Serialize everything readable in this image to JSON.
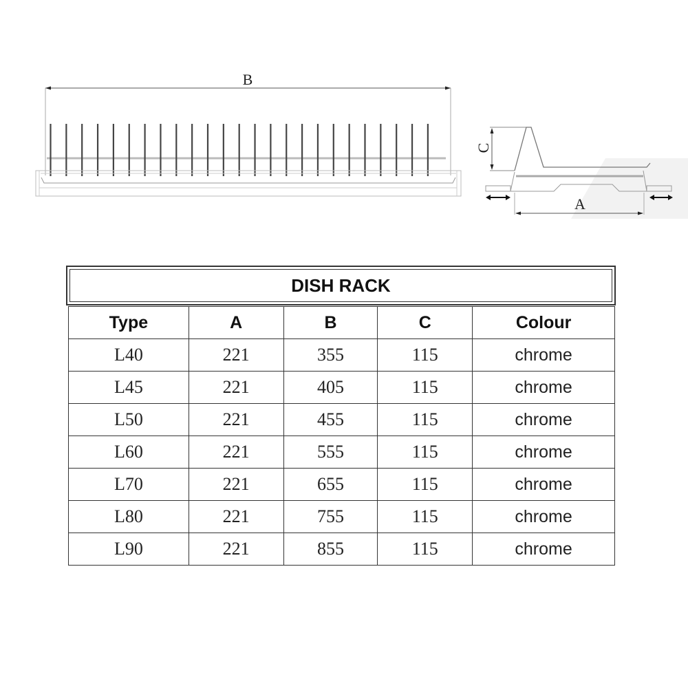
{
  "drawings": {
    "front_view": {
      "dimension_label": "B"
    },
    "side_view": {
      "height_label": "C",
      "depth_label": "A"
    }
  },
  "table": {
    "title": "DISH RACK",
    "headers": [
      "Type",
      "A",
      "B",
      "C",
      "Colour"
    ],
    "rows": [
      [
        "L40",
        "221",
        "355",
        "115",
        "chrome"
      ],
      [
        "L45",
        "221",
        "405",
        "115",
        "chrome"
      ],
      [
        "L50",
        "221",
        "455",
        "115",
        "chrome"
      ],
      [
        "L60",
        "221",
        "555",
        "115",
        "chrome"
      ],
      [
        "L70",
        "221",
        "655",
        "115",
        "chrome"
      ],
      [
        "L80",
        "221",
        "755",
        "115",
        "chrome"
      ],
      [
        "L90",
        "221",
        "855",
        "115",
        "chrome"
      ]
    ]
  }
}
